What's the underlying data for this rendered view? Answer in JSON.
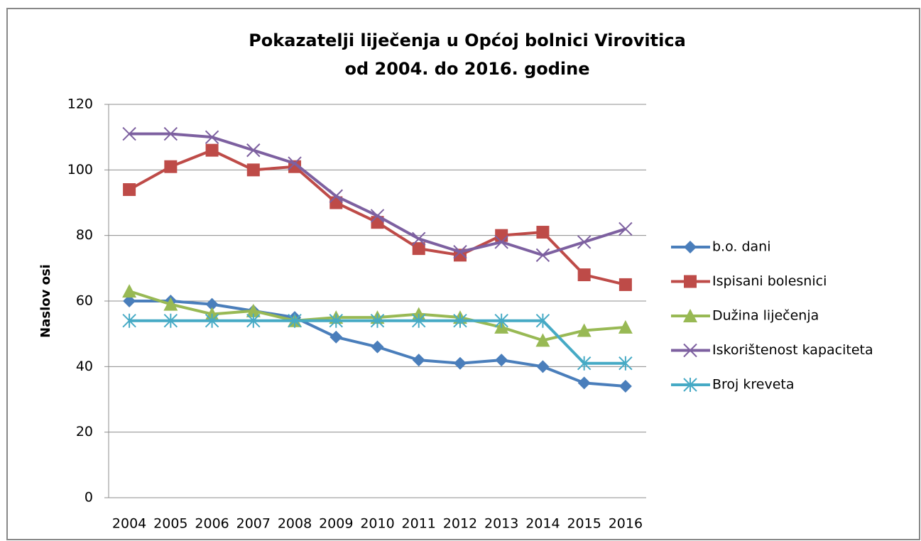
{
  "chart_data": {
    "type": "line",
    "title": [
      "Pokazatelji liječenja u Općoj bolnici Virovitica",
      "od 2004. do 2016. godine"
    ],
    "y_label": "Naslov osi",
    "categories": [
      "2004",
      "2005",
      "2006",
      "2007",
      "2008",
      "2009",
      "2010",
      "2011",
      "2012",
      "2013",
      "2014",
      "2015",
      "2016"
    ],
    "series": [
      {
        "name": "b.o. dani",
        "color": "#4a7ebb",
        "marker": "diamond",
        "values": [
          60,
          60,
          59,
          57,
          55,
          49,
          46,
          42,
          41,
          42,
          40,
          35,
          34
        ]
      },
      {
        "name": "Ispisani bolesnici",
        "color": "#be4b48",
        "marker": "square",
        "values": [
          94,
          101,
          106,
          100,
          101,
          90,
          84,
          76,
          74,
          80,
          81,
          68,
          65
        ]
      },
      {
        "name": "Dužina liječenja",
        "color": "#98b954",
        "marker": "triangle",
        "values": [
          63,
          59,
          56,
          57,
          54,
          55,
          55,
          56,
          55,
          52,
          48,
          51,
          52
        ]
      },
      {
        "name": "Iskorištenost kapaciteta",
        "color": "#7d60a0",
        "marker": "x",
        "values": [
          111,
          111,
          110,
          106,
          102,
          92,
          86,
          79,
          75,
          78,
          74,
          78,
          82
        ]
      },
      {
        "name": "Broj kreveta",
        "color": "#46aac5",
        "marker": "asterisk",
        "values": [
          54,
          54,
          54,
          54,
          54,
          54,
          54,
          54,
          54,
          54,
          54,
          41,
          41
        ]
      }
    ],
    "ylim": [
      0,
      120
    ],
    "yticks": [
      0,
      20,
      40,
      60,
      80,
      100,
      120
    ],
    "grid": true,
    "legend": "right"
  }
}
